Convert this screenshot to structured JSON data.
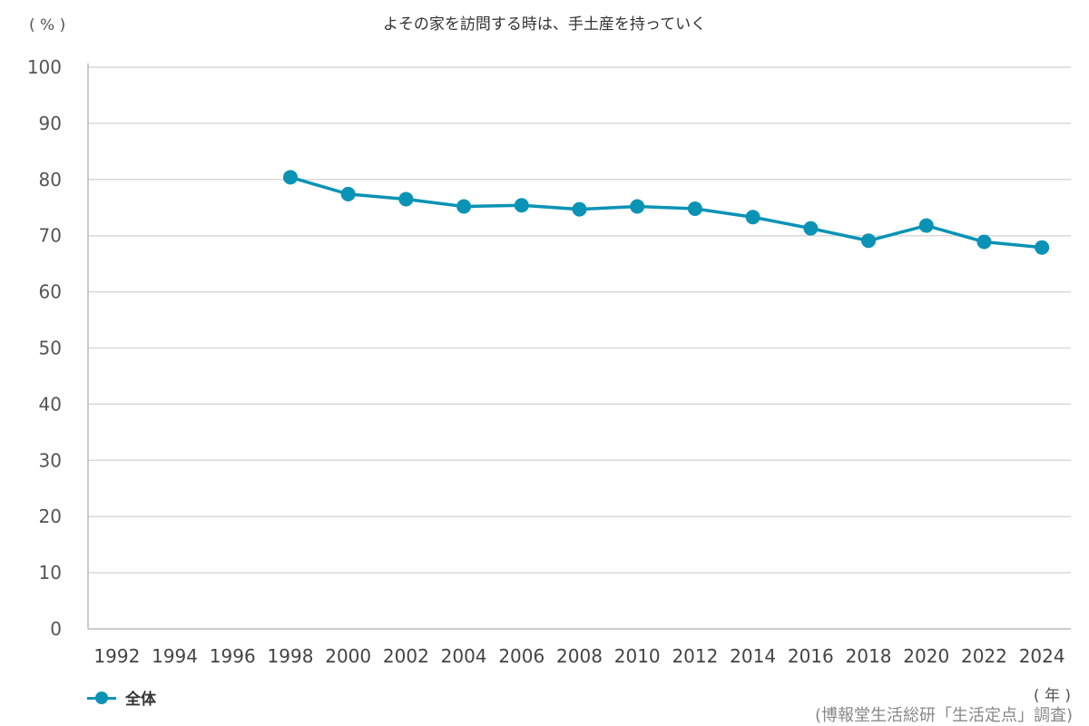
{
  "chart_data": {
    "type": "line",
    "title": "よその家を訪問する時は、手土産を持っていく",
    "ylabel": "( % )",
    "xlabel": "( 年 )",
    "source": "(博報堂生活総研「生活定点」調査)",
    "ylim": [
      0,
      100
    ],
    "yticks": [
      0,
      10,
      20,
      30,
      40,
      50,
      60,
      70,
      80,
      90,
      100
    ],
    "categories": [
      "1992",
      "1994",
      "1996",
      "1998",
      "2000",
      "2002",
      "2004",
      "2006",
      "2008",
      "2010",
      "2012",
      "2014",
      "2016",
      "2018",
      "2020",
      "2022",
      "2024"
    ],
    "grid": true,
    "legend_position": "bottom-left",
    "series": [
      {
        "name": "全体",
        "color": "#0a93b5",
        "values": [
          null,
          null,
          null,
          80.4,
          77.4,
          76.5,
          75.2,
          75.4,
          74.7,
          75.2,
          74.8,
          73.3,
          71.3,
          69.1,
          71.8,
          68.9,
          67.9
        ]
      }
    ]
  }
}
